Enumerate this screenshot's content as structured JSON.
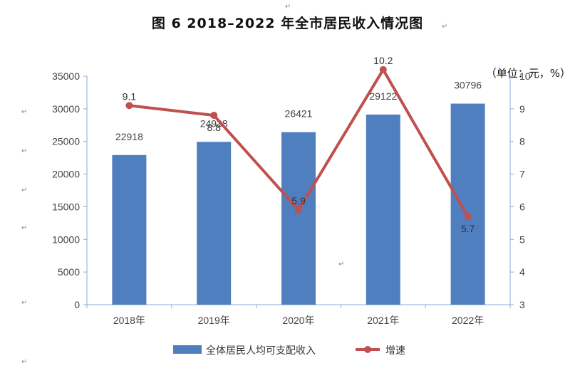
{
  "page": {
    "title": "图 6   2018–2022 年全市居民收入情况图",
    "unit": "（单位：元，%）",
    "para_mark": "↵"
  },
  "chart_data": {
    "type": "bar",
    "categories": [
      "2018年",
      "2019年",
      "2020年",
      "2021年",
      "2022年"
    ],
    "series": [
      {
        "name": "全体居民人均可支配收入",
        "type": "bar",
        "axis": "left",
        "values": [
          22918,
          24938,
          26421,
          29122,
          30796
        ],
        "color": "#4F7FBF"
      },
      {
        "name": "增速",
        "type": "line",
        "axis": "right",
        "values": [
          9.1,
          8.8,
          5.9,
          10.2,
          5.7
        ],
        "color": "#C0504D"
      }
    ],
    "y_left": {
      "min": 0,
      "max": 35000,
      "ticks": [
        0,
        5000,
        10000,
        15000,
        20000,
        25000,
        30000,
        35000
      ]
    },
    "y_right": {
      "min": 3,
      "max": 10,
      "ticks": [
        3,
        4,
        5,
        6,
        7,
        8,
        9,
        10
      ]
    },
    "legend_position": "bottom",
    "grid": false
  }
}
